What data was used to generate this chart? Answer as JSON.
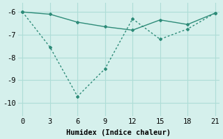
{
  "line1_x": [
    0,
    3,
    6,
    9,
    12,
    15,
    18,
    21
  ],
  "line1_y": [
    -6.0,
    -6.1,
    -6.45,
    -6.65,
    -6.8,
    -6.35,
    -6.55,
    -6.05
  ],
  "line2_x": [
    0,
    3,
    6,
    9,
    12,
    15,
    18,
    21
  ],
  "line2_y": [
    -6.0,
    -7.55,
    -9.72,
    -8.5,
    -6.3,
    -7.2,
    -6.75,
    -6.05
  ],
  "line_color": "#2d8b78",
  "bg_color": "#d5f0ec",
  "grid_color": "#aeddd7",
  "xlabel": "Humidex (Indice chaleur)",
  "xlim": [
    -0.5,
    21.5
  ],
  "ylim": [
    -10.6,
    -5.6
  ],
  "xticks": [
    0,
    3,
    6,
    9,
    12,
    15,
    18,
    21
  ],
  "yticks": [
    -10,
    -9,
    -8,
    -7,
    -6
  ],
  "xlabel_fontsize": 7.5,
  "tick_fontsize": 7.5
}
